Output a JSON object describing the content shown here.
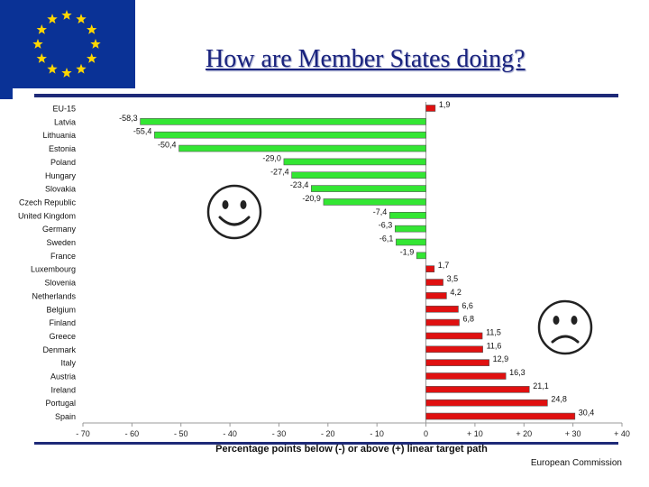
{
  "header": {
    "title": "How are Member States doing?"
  },
  "footer": {
    "text": "European Commission"
  },
  "colors": {
    "flag_blue": "#0a3296",
    "star_yellow": "#ffd700",
    "title_blue": "#1a237e",
    "negative_bar": "#33e633",
    "positive_bar": "#e01010"
  },
  "icons": {
    "happy": "smiley-happy-icon",
    "sad": "smiley-sad-icon"
  },
  "chart_data": {
    "type": "bar",
    "orientation": "horizontal",
    "xlabel": "Percentage points below (-) or above (+) linear target path",
    "xlim": [
      -70,
      40
    ],
    "xticks": [
      -70,
      -60,
      -50,
      -40,
      -30,
      -20,
      -10,
      0,
      10,
      20,
      30,
      40
    ],
    "xtick_labels": [
      "- 70",
      "- 60",
      "- 50",
      "- 40",
      "- 30",
      "- 20",
      "- 10",
      "0",
      "+ 10",
      "+ 20",
      "+ 30",
      "+ 40"
    ],
    "categories": [
      "EU-15",
      "Latvia",
      "Lithuania",
      "Estonia",
      "Poland",
      "Hungary",
      "Slovakia",
      "Czech Republic",
      "United Kingdom",
      "Germany",
      "Sweden",
      "France",
      "Luxembourg",
      "Slovenia",
      "Netherlands",
      "Belgium",
      "Finland",
      "Greece",
      "Denmark",
      "Italy",
      "Austria",
      "Ireland",
      "Portugal",
      "Spain"
    ],
    "values": [
      1.9,
      -58.3,
      -55.4,
      -50.4,
      -29.0,
      -27.4,
      -23.4,
      -20.9,
      -7.4,
      -6.3,
      -6.1,
      -1.9,
      1.7,
      3.5,
      4.2,
      6.6,
      6.8,
      11.5,
      11.6,
      12.9,
      16.3,
      21.1,
      24.8,
      30.4
    ],
    "value_labels": [
      "1,9",
      "-58,3",
      "-55,4",
      "-50,4",
      "-29,0",
      "-27,4",
      "-23,4",
      "-20,9",
      "-7,4",
      "-6,3",
      "-6,1",
      "-1,9",
      "1,7",
      "3,5",
      "4,2",
      "6,6",
      "6,8",
      "11,5",
      "11,6",
      "12,9",
      "16,3",
      "21,1",
      "24,8",
      "30,4"
    ]
  }
}
